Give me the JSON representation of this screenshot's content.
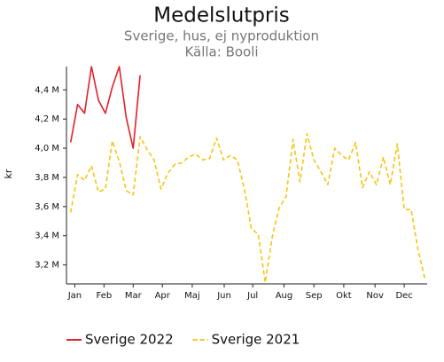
{
  "chart_data": {
    "type": "line",
    "title": "Medelslutpris",
    "subtitle": [
      "Sverige, hus, ej nyproduktion",
      "Källa: Booli"
    ],
    "y_label": "kr",
    "x": [
      1,
      2,
      3,
      4,
      5,
      6,
      7,
      8,
      9,
      10,
      11,
      12,
      13,
      14,
      15,
      16,
      17,
      18,
      19,
      20,
      21,
      22,
      23,
      24,
      25,
      26,
      27,
      28,
      29,
      30,
      31,
      32,
      33,
      34,
      35,
      36,
      37,
      38,
      39,
      40,
      41,
      42,
      43,
      44,
      45,
      46,
      47,
      48,
      49,
      50,
      51,
      52
    ],
    "xlim": [
      0.4,
      52.3
    ],
    "xticks": [
      {
        "value": 1.6,
        "label": "Jan"
      },
      {
        "value": 5.8,
        "label": "Feb"
      },
      {
        "value": 10.0,
        "label": "Mar"
      },
      {
        "value": 14.2,
        "label": "Apr"
      },
      {
        "value": 18.5,
        "label": "Maj"
      },
      {
        "value": 23.1,
        "label": "Jun"
      },
      {
        "value": 27.2,
        "label": "Jul"
      },
      {
        "value": 31.7,
        "label": "Aug"
      },
      {
        "value": 36.0,
        "label": "Sep"
      },
      {
        "value": 40.3,
        "label": "Okt"
      },
      {
        "value": 44.8,
        "label": "Nov"
      },
      {
        "value": 49.0,
        "label": "Dec"
      }
    ],
    "ylim": [
      3.07,
      4.56
    ],
    "yticks": [
      {
        "value": 3.2,
        "label": "3,2 M"
      },
      {
        "value": 3.4,
        "label": "3,4 M"
      },
      {
        "value": 3.6,
        "label": "3,6 M"
      },
      {
        "value": 3.8,
        "label": "3,8 M"
      },
      {
        "value": 4.0,
        "label": "4,0 M"
      },
      {
        "value": 4.2,
        "label": "4,2 M"
      },
      {
        "value": 4.4,
        "label": "4,4 M"
      }
    ],
    "grid": false,
    "legend": "bottom",
    "series": [
      {
        "name": "Sverige 2022",
        "color": "#e3202a",
        "dash": false,
        "values": [
          4.04,
          4.3,
          4.24,
          4.56,
          4.33,
          4.24,
          4.42,
          4.56,
          4.21,
          4.0,
          4.5,
          null,
          null,
          null,
          null,
          null,
          null,
          null,
          null,
          null,
          null,
          null,
          null,
          null,
          null,
          null,
          null,
          null,
          null,
          null,
          null,
          null,
          null,
          null,
          null,
          null,
          null,
          null,
          null,
          null,
          null,
          null,
          null,
          null,
          null,
          null,
          null,
          null,
          null,
          null,
          null,
          null
        ]
      },
      {
        "name": "Sverige 2021",
        "color": "#f5c518",
        "dash": true,
        "values": [
          3.56,
          3.82,
          3.78,
          3.88,
          3.7,
          3.72,
          4.05,
          3.91,
          3.71,
          3.68,
          4.08,
          3.99,
          3.92,
          3.72,
          3.83,
          3.89,
          3.9,
          3.94,
          3.96,
          3.92,
          3.93,
          4.07,
          3.92,
          3.95,
          3.92,
          3.72,
          3.45,
          3.41,
          3.08,
          3.39,
          3.59,
          3.67,
          4.06,
          3.77,
          4.1,
          3.92,
          3.84,
          3.75,
          4.0,
          3.95,
          3.92,
          4.04,
          3.73,
          3.84,
          3.75,
          3.94,
          3.75,
          4.03,
          3.58,
          3.58,
          3.3,
          3.1
        ]
      }
    ]
  }
}
